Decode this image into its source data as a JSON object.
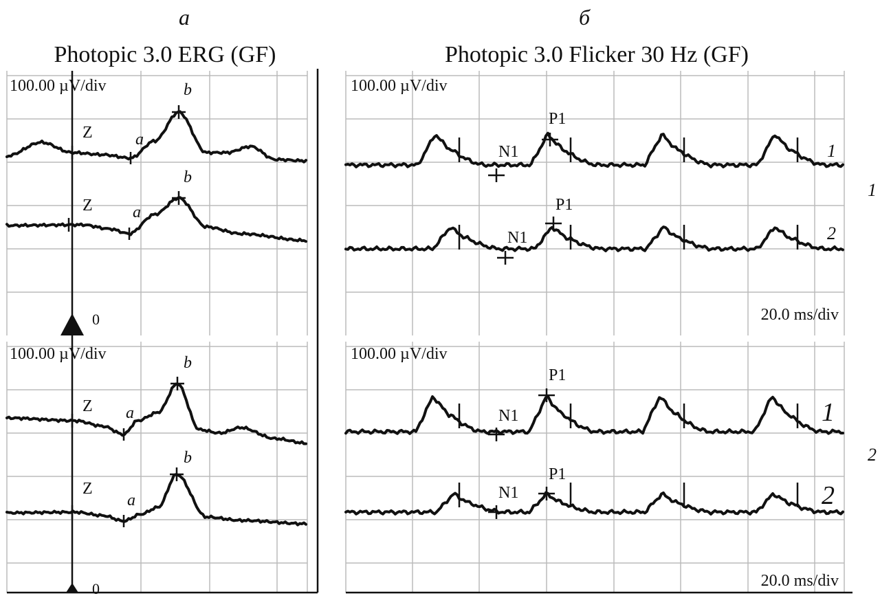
{
  "panels": [
    {
      "label": "а",
      "title": "Photopic 3.0 ERG (GF)",
      "plots": [
        {
          "scale": "100.00 µV/div",
          "traces": [
            {
              "z": "Z",
              "a": "a",
              "b": "b"
            },
            {
              "z": "Z",
              "a": "a",
              "b": "b"
            }
          ],
          "zero": "0"
        },
        {
          "scale": "100.00 µV/div",
          "traces": [
            {
              "z": "Z",
              "a": "a",
              "b": "b"
            },
            {
              "z": "Z",
              "a": "a",
              "b": "b"
            }
          ],
          "zero": "0"
        }
      ]
    },
    {
      "label": "б",
      "title": "Photopic 3.0 Flicker 30 Hz (GF)",
      "plots": [
        {
          "scale": "100.00 µV/div",
          "traces": [
            {
              "n1": "N1",
              "p1": "P1",
              "label": "1"
            },
            {
              "n1": "N1",
              "p1": "P1",
              "label": "2"
            }
          ],
          "sweep": "20.0 ms/div"
        },
        {
          "scale": "100.00 µV/div",
          "traces": [
            {
              "n1": "N1",
              "p1": "P1",
              "label": "1"
            },
            {
              "n1": "N1",
              "p1": "P1",
              "label": "2"
            }
          ],
          "sweep": "20.0 ms/div"
        }
      ]
    }
  ],
  "row_labels": [
    "1",
    "2"
  ]
}
